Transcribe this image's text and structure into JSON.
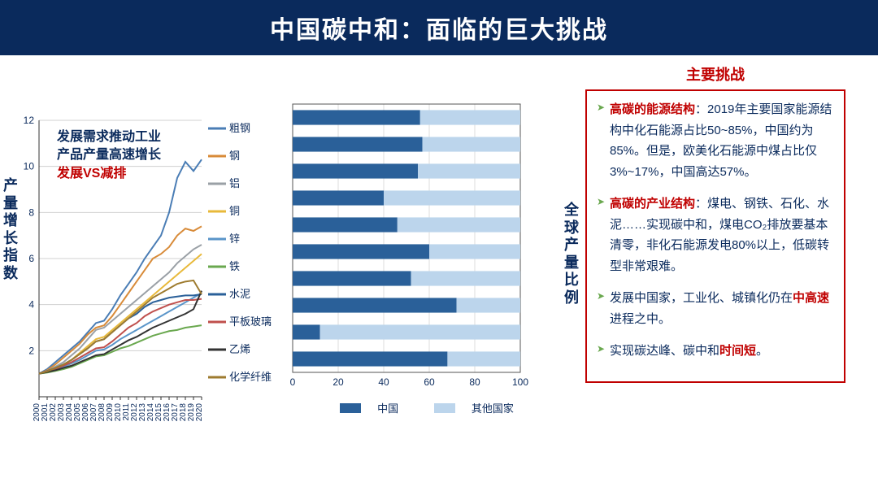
{
  "title": "中国碳中和：面临的巨大挑战",
  "challenges_header": "主要挑战",
  "left_chart": {
    "type": "line",
    "y_axis_label": "产量增长指数",
    "annot_line1": "发展需求推动工业",
    "annot_line2": "产品产量高速增长",
    "annot_line3": "发展VS减排",
    "annot_color_blue": "#0a2a5c",
    "annot_color_red": "#c00000",
    "xlim": [
      2000,
      2020
    ],
    "ylim": [
      0,
      12
    ],
    "ytick_step": 2,
    "x_ticks": [
      2000,
      2001,
      2002,
      2003,
      2004,
      2005,
      2006,
      2007,
      2008,
      2009,
      2010,
      2011,
      2012,
      2013,
      2014,
      2015,
      2016,
      2017,
      2018,
      2019,
      2020
    ],
    "grid_color": "#d0d0d0",
    "background_color": "#ffffff",
    "axis_color": "#333333",
    "label_fontsize": 18,
    "tick_fontsize": 10,
    "legend_fontsize": 12,
    "series": [
      {
        "name": "粗钢",
        "color": "#4a7db5",
        "values": [
          1.0,
          1.2,
          1.5,
          1.8,
          2.1,
          2.4,
          2.8,
          3.2,
          3.3,
          3.8,
          4.4,
          4.9,
          5.4,
          6.0,
          6.5,
          7.0,
          8.0,
          9.5,
          10.2,
          9.8,
          10.3
        ]
      },
      {
        "name": "钢",
        "color": "#d88b39",
        "values": [
          1.0,
          1.15,
          1.4,
          1.7,
          2.0,
          2.3,
          2.7,
          3.0,
          3.1,
          3.5,
          4.0,
          4.5,
          5.0,
          5.5,
          6.0,
          6.2,
          6.5,
          7.0,
          7.3,
          7.2,
          7.4
        ]
      },
      {
        "name": "铝",
        "color": "#9aa0a6",
        "values": [
          1.0,
          1.1,
          1.3,
          1.5,
          1.8,
          2.1,
          2.5,
          2.9,
          3.0,
          3.3,
          3.6,
          3.9,
          4.2,
          4.5,
          4.8,
          5.1,
          5.4,
          5.8,
          6.1,
          6.4,
          6.6
        ]
      },
      {
        "name": "铜",
        "color": "#e8b93a",
        "values": [
          1.0,
          1.1,
          1.2,
          1.4,
          1.6,
          1.9,
          2.2,
          2.5,
          2.6,
          2.9,
          3.2,
          3.5,
          3.8,
          4.1,
          4.4,
          4.7,
          5.0,
          5.3,
          5.6,
          5.9,
          6.2
        ]
      },
      {
        "name": "锌",
        "color": "#5a95c9",
        "values": [
          1.0,
          1.08,
          1.18,
          1.3,
          1.45,
          1.6,
          1.8,
          2.0,
          2.05,
          2.25,
          2.5,
          2.7,
          2.9,
          3.1,
          3.3,
          3.5,
          3.7,
          3.9,
          4.1,
          4.3,
          4.5
        ]
      },
      {
        "name": "铁",
        "color": "#6aa84f",
        "values": [
          1.0,
          1.05,
          1.12,
          1.2,
          1.3,
          1.45,
          1.6,
          1.75,
          1.8,
          1.95,
          2.1,
          2.2,
          2.35,
          2.5,
          2.65,
          2.75,
          2.85,
          2.9,
          3.0,
          3.05,
          3.1
        ]
      },
      {
        "name": "水泥",
        "color": "#2a6099",
        "values": [
          1.0,
          1.12,
          1.25,
          1.4,
          1.6,
          1.85,
          2.1,
          2.4,
          2.5,
          2.8,
          3.1,
          3.4,
          3.6,
          3.9,
          4.1,
          4.2,
          4.3,
          4.35,
          4.4,
          4.4,
          4.45
        ]
      },
      {
        "name": "平板玻璃",
        "color": "#c0504d",
        "values": [
          1.0,
          1.1,
          1.22,
          1.35,
          1.5,
          1.7,
          1.9,
          2.1,
          2.15,
          2.4,
          2.7,
          3.0,
          3.2,
          3.5,
          3.7,
          3.85,
          4.0,
          4.1,
          4.2,
          4.2,
          4.25
        ]
      },
      {
        "name": "乙烯",
        "color": "#333333",
        "values": [
          1.0,
          1.07,
          1.15,
          1.25,
          1.35,
          1.5,
          1.65,
          1.8,
          1.85,
          2.05,
          2.25,
          2.45,
          2.6,
          2.8,
          3.0,
          3.15,
          3.3,
          3.45,
          3.6,
          3.8,
          4.6
        ]
      },
      {
        "name": "化学纤维",
        "color": "#9e7b2f",
        "values": [
          1.0,
          1.1,
          1.25,
          1.4,
          1.6,
          1.85,
          2.1,
          2.4,
          2.5,
          2.8,
          3.1,
          3.4,
          3.7,
          4.0,
          4.3,
          4.5,
          4.7,
          4.9,
          5.0,
          5.05,
          4.45
        ]
      }
    ]
  },
  "bar_chart": {
    "type": "stacked-bar-horizontal",
    "y_axis_label": "全球产量比例",
    "xlim": [
      0,
      100
    ],
    "xtick_step": 20,
    "grid_color": "#dddddd",
    "china_color": "#2a6099",
    "other_color": "#bcd5ec",
    "border_color": "#555555",
    "bar_height": 0.55,
    "legend": {
      "china": "中国",
      "other": "其他国家"
    },
    "items": [
      {
        "name": "粗钢",
        "china": 56
      },
      {
        "name": "钢",
        "china": 57
      },
      {
        "name": "铝",
        "china": 55
      },
      {
        "name": "铜",
        "china": 40
      },
      {
        "name": "锌",
        "china": 46
      },
      {
        "name": "铁",
        "china": 60
      },
      {
        "name": "水泥",
        "china": 52
      },
      {
        "name": "平板玻璃",
        "china": 72
      },
      {
        "name": "乙烯",
        "china": 12
      },
      {
        "name": "化学纤维",
        "china": 68
      }
    ]
  },
  "challenges": {
    "text_color": "#0a2a5c",
    "highlight_color": "#c00000",
    "border_color": "#c00000",
    "fontsize": 15,
    "items": [
      {
        "highlight": "高碳的能源结构",
        "rest": "：2019年主要国家能源结构中化石能源占比50~85%，中国约为85%。但是，欧美化石能源中煤占比仅3%~17%，中国高达57%。",
        "mid_hl": ""
      },
      {
        "highlight": "高碳的产业结构",
        "rest": "：煤电、钢铁、石化、水泥……实现碳中和，煤电CO₂排放要基本清零，非化石能源发电80%以上，低碳转型非常艰难。",
        "mid_hl": ""
      },
      {
        "highlight": "",
        "rest_a": "发展中国家，工业化、城镇化仍在",
        "mid_hl": "中高速",
        "rest_b": "进程之中。"
      },
      {
        "highlight": "",
        "rest_a": "实现碳达峰、碳中和",
        "mid_hl": "时间短",
        "rest_b": "。"
      }
    ]
  }
}
